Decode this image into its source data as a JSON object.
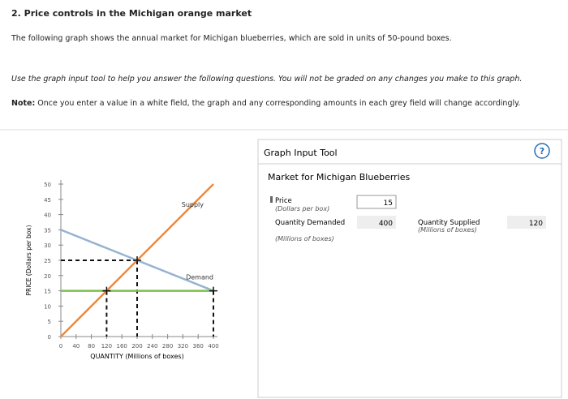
{
  "header": {
    "title": "2. Price controls in the Michigan orange market",
    "intro": "The following graph shows the annual market for Michigan blueberries, which are sold in units of 50-pound boxes.",
    "instructions": "Use the graph input tool to help you answer the following questions. You will not be graded on any changes you make to this graph.",
    "note_label": "Note:",
    "note": "Once you enter a value in a white field, the graph and any corresponding amounts in each grey field will change accordingly."
  },
  "chart_data": {
    "type": "line",
    "xlabel": "QUANTITY (Millions of boxes)",
    "ylabel": "PRICE (Dollars per box)",
    "xlim": [
      0,
      400
    ],
    "ylim": [
      0,
      50
    ],
    "xticks": [
      0,
      40,
      80,
      120,
      160,
      200,
      240,
      280,
      320,
      360,
      400
    ],
    "yticks": [
      0,
      5,
      10,
      15,
      20,
      25,
      30,
      35,
      40,
      45,
      50
    ],
    "series": [
      {
        "name": "Supply",
        "color": "#f0883e",
        "x": [
          0,
          400
        ],
        "values": [
          0,
          50
        ]
      },
      {
        "name": "Demand",
        "color": "#97b3d0",
        "x": [
          0,
          400
        ],
        "values": [
          35,
          15
        ]
      },
      {
        "color": "#7cc04b",
        "x": [
          0,
          400
        ],
        "values": [
          15,
          15
        ]
      }
    ],
    "points": [
      {
        "x": 120,
        "y": 15
      },
      {
        "x": 200,
        "y": 25
      },
      {
        "x": 400,
        "y": 15
      }
    ]
  },
  "tool": {
    "title": "Graph Input Tool",
    "help": "?",
    "subtitle": "Market for Michigan Blueberries",
    "price": {
      "label": "Price",
      "unit": "(Dollars per box)",
      "value": 15
    },
    "demanded": {
      "label": "Quantity Demanded",
      "unit": "(Millions of boxes)",
      "value": 400
    },
    "supplied": {
      "label": "Quantity Supplied",
      "unit": "(Millions of boxes)",
      "value": 120
    }
  }
}
